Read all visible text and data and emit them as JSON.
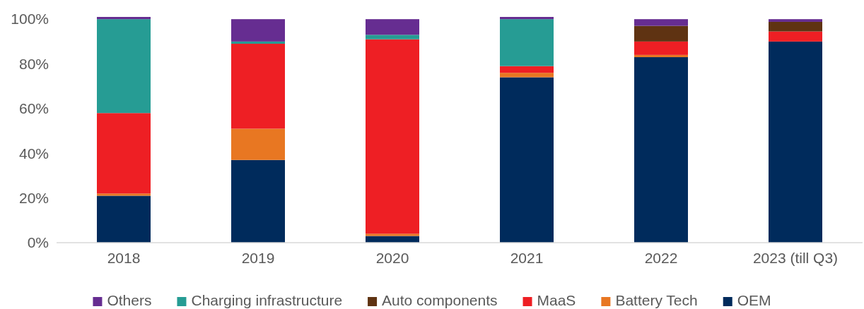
{
  "chart_data": {
    "type": "bar",
    "stacked": true,
    "categories": [
      "2018",
      "2019",
      "2020",
      "2021",
      "2022",
      "2023 (till Q3)"
    ],
    "series": [
      {
        "name": "OEM",
        "color": "#002b5c",
        "values": [
          21,
          37,
          3,
          74,
          83,
          90
        ]
      },
      {
        "name": "Battery Tech",
        "color": "#e87722",
        "values": [
          1,
          14,
          1,
          2,
          1,
          null
        ]
      },
      {
        "name": "MaaS",
        "color": "#ee1f24",
        "values": [
          36,
          38,
          87,
          3,
          6,
          4.5
        ]
      },
      {
        "name": "Auto components",
        "color": "#5f3312",
        "values": [
          null,
          null,
          null,
          null,
          7,
          4.3
        ]
      },
      {
        "name": "Charging infrastructure",
        "color": "#269c94",
        "values": [
          42,
          1,
          2,
          21,
          null,
          null
        ]
      },
      {
        "name": "Others",
        "color": "#662d91",
        "values": [
          1,
          10,
          7,
          1,
          3,
          1.2
        ]
      }
    ],
    "ylim": [
      0,
      101
    ],
    "yticks": [
      {
        "value": 0,
        "label": "0%"
      },
      {
        "value": 20,
        "label": "20%"
      },
      {
        "value": 40,
        "label": "40%"
      },
      {
        "value": 60,
        "label": "60%"
      },
      {
        "value": 80,
        "label": "80%"
      },
      {
        "value": 100,
        "label": "100%"
      }
    ],
    "legend": "bottom"
  }
}
